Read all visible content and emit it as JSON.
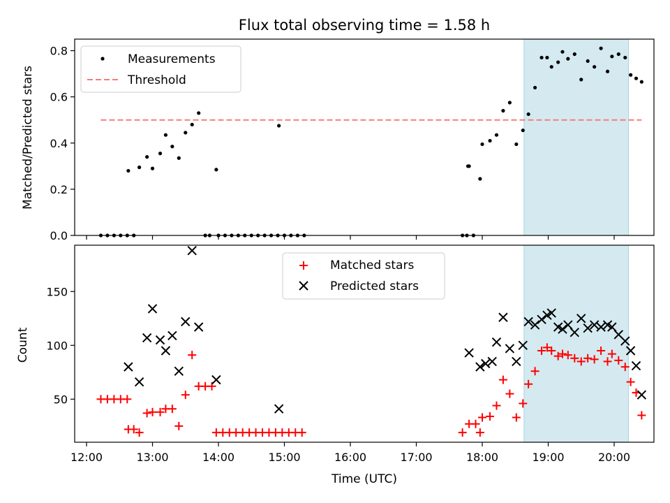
{
  "chart_data": [
    {
      "type": "scatter",
      "title": "Flux total observing time = 1.58 h",
      "xlabel": "",
      "ylabel": "Matched/Predicted stars",
      "xlim": [
        "12:00",
        "20:40"
      ],
      "ylim": [
        0,
        0.85
      ],
      "yticks": [
        0.0,
        0.2,
        0.4,
        0.6,
        0.8
      ],
      "ytick_labels": [
        "0.0",
        "0.2",
        "0.4",
        "0.6",
        "0.8"
      ],
      "legend_position": "top-left",
      "shaded_span": [
        "18:38",
        "20:13"
      ],
      "shade_color": "#d4eaf0",
      "series": [
        {
          "name": "Measurements",
          "marker": "dot",
          "color": "#000000",
          "points": [
            [
              "12:13",
              0
            ],
            [
              "12:19",
              0
            ],
            [
              "12:25",
              0
            ],
            [
              "12:31",
              0
            ],
            [
              "12:37",
              0
            ],
            [
              "12:43",
              0
            ],
            [
              "12:38",
              0.28
            ],
            [
              "12:48",
              0.295
            ],
            [
              "12:55",
              0.34
            ],
            [
              "13:00",
              0.29
            ],
            [
              "13:07",
              0.355
            ],
            [
              "13:12",
              0.435
            ],
            [
              "13:18",
              0.385
            ],
            [
              "13:24",
              0.335
            ],
            [
              "13:30",
              0.445
            ],
            [
              "13:36",
              0.48
            ],
            [
              "13:42",
              0.53
            ],
            [
              "13:48",
              0
            ],
            [
              "13:52",
              0
            ],
            [
              "13:58",
              0.285
            ],
            [
              "14:00",
              0
            ],
            [
              "14:06",
              0
            ],
            [
              "14:12",
              0
            ],
            [
              "14:18",
              0
            ],
            [
              "14:24",
              0
            ],
            [
              "14:30",
              0
            ],
            [
              "14:36",
              0
            ],
            [
              "14:42",
              0
            ],
            [
              "14:48",
              0
            ],
            [
              "14:54",
              0
            ],
            [
              "15:00",
              0
            ],
            [
              "15:06",
              0
            ],
            [
              "15:12",
              0
            ],
            [
              "15:18",
              0
            ],
            [
              "14:55",
              0.475
            ],
            [
              "17:42",
              0
            ],
            [
              "17:46",
              0
            ],
            [
              "17:52",
              0
            ],
            [
              "17:47",
              0.3
            ],
            [
              "17:48",
              0.3
            ],
            [
              "17:58",
              0.245
            ],
            [
              "18:00",
              0.395
            ],
            [
              "18:07",
              0.41
            ],
            [
              "18:13",
              0.435
            ],
            [
              "18:19",
              0.54
            ],
            [
              "18:25",
              0.575
            ],
            [
              "18:31",
              0.395
            ],
            [
              "18:37",
              0.455
            ],
            [
              "18:42",
              0.525
            ],
            [
              "18:48",
              0.64
            ],
            [
              "18:54",
              0.77
            ],
            [
              "18:59",
              0.77
            ],
            [
              "19:03",
              0.73
            ],
            [
              "19:09",
              0.75
            ],
            [
              "19:13",
              0.795
            ],
            [
              "19:18",
              0.765
            ],
            [
              "19:24",
              0.785
            ],
            [
              "19:30",
              0.675
            ],
            [
              "19:36",
              0.755
            ],
            [
              "19:42",
              0.73
            ],
            [
              "19:48",
              0.81
            ],
            [
              "19:54",
              0.71
            ],
            [
              "19:58",
              0.775
            ],
            [
              "20:04",
              0.785
            ],
            [
              "20:10",
              0.77
            ],
            [
              "20:15",
              0.695
            ],
            [
              "20:20",
              0.68
            ],
            [
              "20:25",
              0.665
            ]
          ]
        },
        {
          "name": "Threshold",
          "marker": "dashed-line",
          "color": "#f77c7c",
          "x": [
            "12:13",
            "20:25"
          ],
          "y": [
            0.5,
            0.5
          ]
        }
      ]
    },
    {
      "type": "scatter",
      "title": "",
      "xlabel": "Time (UTC)",
      "ylabel": "Count",
      "xlim": [
        "12:00",
        "20:40"
      ],
      "ylim": [
        10,
        193
      ],
      "yticks": [
        50,
        100,
        150
      ],
      "ytick_labels": [
        "50",
        "100",
        "150"
      ],
      "xtick_labels": [
        "12:00",
        "13:00",
        "14:00",
        "15:00",
        "16:00",
        "17:00",
        "18:00",
        "19:00",
        "20:00"
      ],
      "legend_position": "top-center",
      "shaded_span": [
        "18:38",
        "20:13"
      ],
      "shade_color": "#d4eaf0",
      "series": [
        {
          "name": "Matched stars",
          "marker": "plus",
          "color": "#ff0000",
          "points": [
            [
              "12:13",
              50
            ],
            [
              "12:19",
              50
            ],
            [
              "12:25",
              50
            ],
            [
              "12:31",
              50
            ],
            [
              "12:37",
              50
            ],
            [
              "12:38",
              22
            ],
            [
              "12:43",
              22
            ],
            [
              "12:48",
              19
            ],
            [
              "12:55",
              37
            ],
            [
              "13:00",
              38
            ],
            [
              "13:07",
              38
            ],
            [
              "13:12",
              41
            ],
            [
              "13:18",
              41
            ],
            [
              "13:24",
              25
            ],
            [
              "13:30",
              54
            ],
            [
              "13:36",
              91
            ],
            [
              "13:42",
              62
            ],
            [
              "13:48",
              62
            ],
            [
              "13:54",
              62
            ],
            [
              "13:58",
              19
            ],
            [
              "14:04",
              19
            ],
            [
              "14:10",
              19
            ],
            [
              "14:16",
              19
            ],
            [
              "14:22",
              19
            ],
            [
              "14:28",
              19
            ],
            [
              "14:34",
              19
            ],
            [
              "14:40",
              19
            ],
            [
              "14:46",
              19
            ],
            [
              "14:52",
              19
            ],
            [
              "14:58",
              19
            ],
            [
              "15:04",
              19
            ],
            [
              "15:10",
              19
            ],
            [
              "15:16",
              19
            ],
            [
              "17:42",
              19
            ],
            [
              "17:48",
              27
            ],
            [
              "17:54",
              27
            ],
            [
              "17:58",
              19
            ],
            [
              "18:00",
              33
            ],
            [
              "18:07",
              34
            ],
            [
              "18:13",
              44
            ],
            [
              "18:19",
              68
            ],
            [
              "18:25",
              55
            ],
            [
              "18:31",
              33
            ],
            [
              "18:37",
              46
            ],
            [
              "18:42",
              64
            ],
            [
              "18:48",
              76
            ],
            [
              "18:54",
              95
            ],
            [
              "18:59",
              98
            ],
            [
              "19:03",
              95
            ],
            [
              "19:09",
              90
            ],
            [
              "19:13",
              92
            ],
            [
              "19:18",
              91
            ],
            [
              "19:24",
              88
            ],
            [
              "19:30",
              85
            ],
            [
              "19:36",
              88
            ],
            [
              "19:42",
              87
            ],
            [
              "19:48",
              95
            ],
            [
              "19:54",
              85
            ],
            [
              "19:58",
              92
            ],
            [
              "20:04",
              86
            ],
            [
              "20:10",
              80
            ],
            [
              "20:15",
              66
            ],
            [
              "20:20",
              56
            ],
            [
              "20:25",
              35
            ]
          ]
        },
        {
          "name": "Predicted stars",
          "marker": "x",
          "color": "#000000",
          "points": [
            [
              "12:38",
              80
            ],
            [
              "12:48",
              66
            ],
            [
              "12:55",
              107
            ],
            [
              "13:00",
              134
            ],
            [
              "13:07",
              105
            ],
            [
              "13:12",
              95
            ],
            [
              "13:18",
              109
            ],
            [
              "13:24",
              76
            ],
            [
              "13:30",
              122
            ],
            [
              "13:36",
              188
            ],
            [
              "13:42",
              117
            ],
            [
              "13:58",
              68
            ],
            [
              "14:55",
              41
            ],
            [
              "17:48",
              93
            ],
            [
              "17:58",
              80
            ],
            [
              "18:03",
              83
            ],
            [
              "18:09",
              85
            ],
            [
              "18:13",
              103
            ],
            [
              "18:19",
              126
            ],
            [
              "18:25",
              97
            ],
            [
              "18:31",
              85
            ],
            [
              "18:37",
              100
            ],
            [
              "18:42",
              122
            ],
            [
              "18:48",
              119
            ],
            [
              "18:54",
              124
            ],
            [
              "18:59",
              128
            ],
            [
              "19:03",
              130
            ],
            [
              "19:09",
              117
            ],
            [
              "19:13",
              115
            ],
            [
              "19:18",
              119
            ],
            [
              "19:24",
              112
            ],
            [
              "19:30",
              125
            ],
            [
              "19:36",
              116
            ],
            [
              "19:42",
              119
            ],
            [
              "19:48",
              117
            ],
            [
              "19:54",
              119
            ],
            [
              "19:58",
              117
            ],
            [
              "20:04",
              110
            ],
            [
              "20:10",
              104
            ],
            [
              "20:15",
              95
            ],
            [
              "20:20",
              81
            ],
            [
              "20:25",
              54
            ]
          ]
        }
      ]
    }
  ]
}
